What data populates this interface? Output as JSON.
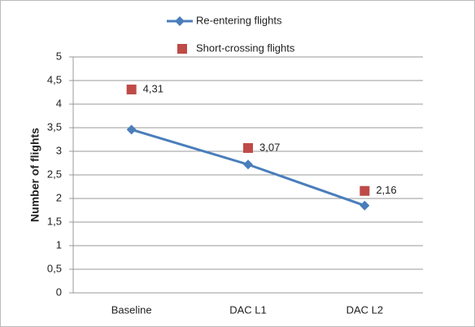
{
  "chart_data": {
    "type": "line",
    "y_label": "Number of flights",
    "categories": [
      "Baseline",
      "DAC L1",
      "DAC L2"
    ],
    "series": [
      {
        "name": "Re-entering flights",
        "color": "#4a7ebb",
        "marker": "diamond",
        "values": [
          3.46,
          2.72,
          1.85
        ]
      },
      {
        "name": "Short-crossing flights",
        "color": "#be4b48",
        "type": "scatter",
        "marker": "square",
        "values": [
          4.31,
          3.07,
          2.16
        ],
        "value_labels": [
          "4,31",
          "3,07",
          "2,16"
        ]
      }
    ],
    "ylim": [
      0,
      5
    ],
    "yticks": [
      0,
      {
        "value": 0.5,
        "label": "0,5"
      },
      1,
      {
        "value": 1.5,
        "label": "1,5"
      },
      2,
      {
        "value": 2.5,
        "label": "2,5"
      },
      3,
      {
        "value": 3.5,
        "label": "3,5"
      },
      4,
      {
        "value": 4.5,
        "label": "4,5"
      },
      5
    ],
    "grid": true,
    "legend": "top"
  }
}
